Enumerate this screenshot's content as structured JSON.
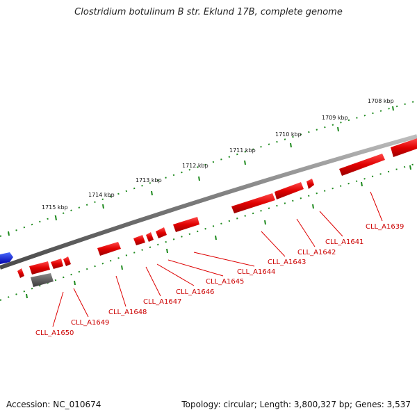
{
  "title": "Clostridium botulinum B str. Eklund 17B, complete genome",
  "footer": {
    "accession": "Accession: NC_010674",
    "summary": "Topology: circular; Length: 3,800,327 bp; Genes: 3,537"
  },
  "colors": {
    "backbone": "#8c8c8c",
    "gene_forward": "#e00000",
    "gene_highlight": "#0000ee",
    "gene_other": "#555555",
    "ticks": "#1e8a1e",
    "label": "#cc0000"
  },
  "kbp_ticks": [
    "1708 kbp",
    "1709 kbp",
    "1710 kbp",
    "1711 kbp",
    "1712 kbp",
    "1713 kbp",
    "1714 kbp",
    "1715 kbp"
  ],
  "gene_labels": [
    "CLL_A1639",
    "CLL_A1641",
    "CLL_A1642",
    "CLL_A1643",
    "CLL_A1644",
    "CLL_A1645",
    "CLL_A1646",
    "CLL_A1647",
    "CLL_A1648",
    "CLL_A1649",
    "CLL_A1650"
  ]
}
